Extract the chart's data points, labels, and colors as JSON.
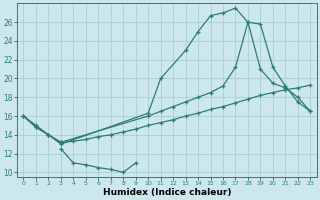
{
  "xlabel": "Humidex (Indice chaleur)",
  "bg_color": "#cce8ec",
  "grid_color": "#aacdd4",
  "line_color": "#2e7d6e",
  "xlim": [
    -0.5,
    23.5
  ],
  "ylim": [
    9.5,
    28
  ],
  "xticks": [
    0,
    1,
    2,
    3,
    4,
    5,
    6,
    7,
    8,
    9,
    10,
    11,
    12,
    13,
    14,
    15,
    16,
    17,
    18,
    19,
    20,
    21,
    22,
    23
  ],
  "yticks": [
    10,
    12,
    14,
    16,
    18,
    20,
    22,
    24,
    26
  ],
  "curve1_x": [
    0,
    1,
    2,
    3,
    10,
    11,
    13,
    14,
    15,
    16,
    17,
    18,
    19,
    20,
    21,
    22,
    23
  ],
  "curve1_y": [
    16,
    15,
    14,
    13,
    16.3,
    20,
    23,
    25,
    26.7,
    27,
    27.5,
    26,
    25.8,
    21.2,
    19.2,
    17.5,
    16.5
  ],
  "curve2_x": [
    0,
    1,
    2,
    3,
    10,
    11,
    12,
    13,
    14,
    15,
    16,
    17,
    18,
    19,
    20,
    21,
    22,
    23
  ],
  "curve2_y": [
    16,
    14.8,
    14.0,
    13.2,
    16.0,
    16.5,
    17.0,
    17.5,
    18.0,
    18.5,
    19.2,
    21.2,
    26,
    21.0,
    19.5,
    19.0,
    18.0,
    16.5
  ],
  "curve3_x": [
    0,
    1,
    2,
    3,
    4,
    5,
    6,
    7,
    8,
    9,
    10,
    11,
    12,
    13,
    14,
    15,
    16,
    17,
    18,
    19,
    20,
    21,
    22,
    23
  ],
  "curve3_y": [
    16,
    14.8,
    14.0,
    13.2,
    13.3,
    13.5,
    13.8,
    14.0,
    14.3,
    14.6,
    15.0,
    15.3,
    15.6,
    16.0,
    16.3,
    16.7,
    17.0,
    17.4,
    17.8,
    18.2,
    18.5,
    18.8,
    19.0,
    19.3
  ],
  "curve4_x": [
    3,
    4,
    5,
    6,
    7,
    8,
    9
  ],
  "curve4_y": [
    12.5,
    11.0,
    10.8,
    10.5,
    10.3,
    10.0,
    11.0
  ]
}
